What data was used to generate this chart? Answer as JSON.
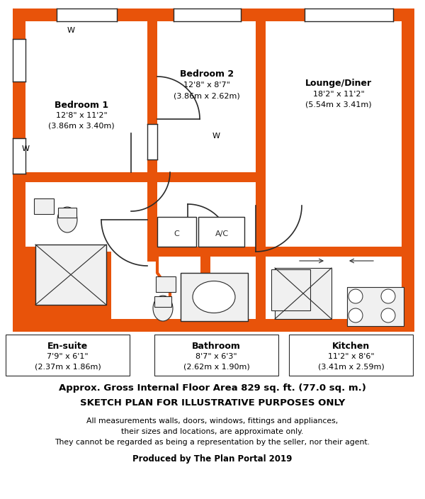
{
  "bg_color": "#ffffff",
  "wall_color": "#e8530a",
  "inner_wall_color": "#2a2a2a",
  "title_line1": "Approx. Gross Internal Floor Area 829 sq. ft. (77.0 sq. m.)",
  "title_line2": "SKETCH PLAN FOR ILLUSTRATIVE PURPOSES ONLY",
  "disclaimer1": "All measurements walls, doors, windows, fittings and appliances,",
  "disclaimer2": "their sizes and locations, are approximate only.",
  "disclaimer3": "They cannot be regarded as being a representation by the seller, nor their agent.",
  "produced": "Produced by The Plan Portal 2019",
  "rooms": {
    "bedroom1": {
      "label": "Bedroom 1",
      "sub": "12'8\" x 11'2\"",
      "sub2": "(3.86m x 3.40m)"
    },
    "bedroom2": {
      "label": "Bedroom 2",
      "sub": "12'8\" x 8'7\"",
      "sub2": "(3.86m x 2.62m)"
    },
    "lounge": {
      "label": "Lounge/Diner",
      "sub": "18'2\" x 11'2\"",
      "sub2": "(5.54m x 3.41m)"
    },
    "ensuite": {
      "label": "En-suite",
      "sub": "7'9\" x 6'1\"",
      "sub2": "(2.37m x 1.86m)"
    },
    "bathroom": {
      "label": "Bathroom",
      "sub": "8'7\" x 6'3\"",
      "sub2": "(2.62m x 1.90m)"
    },
    "kitchen": {
      "label": "Kitchen",
      "sub": "11'2\" x 8'6\"",
      "sub2": "(3.41m x 2.59m)"
    }
  }
}
